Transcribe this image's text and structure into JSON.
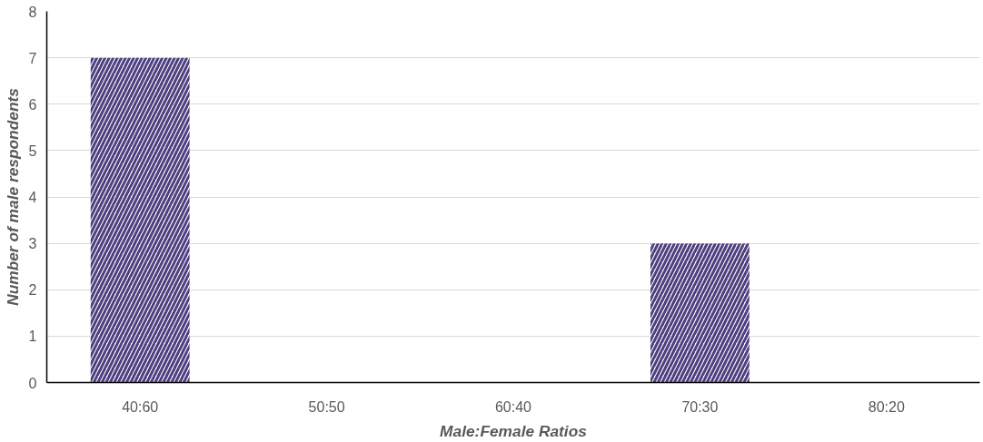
{
  "chart_data": {
    "type": "bar",
    "xlabel": "Male:Female Ratios",
    "ylabel": "Number of male respondents",
    "categories": [
      "40:60",
      "50:50",
      "60:40",
      "70:30",
      "80:20"
    ],
    "values": [
      7,
      0,
      0,
      3,
      0
    ],
    "color": "#4e3f7f",
    "ylim": [
      0,
      8
    ],
    "yticks": [
      0,
      1,
      2,
      3,
      4,
      5,
      6,
      7,
      8
    ],
    "grid": "y"
  }
}
